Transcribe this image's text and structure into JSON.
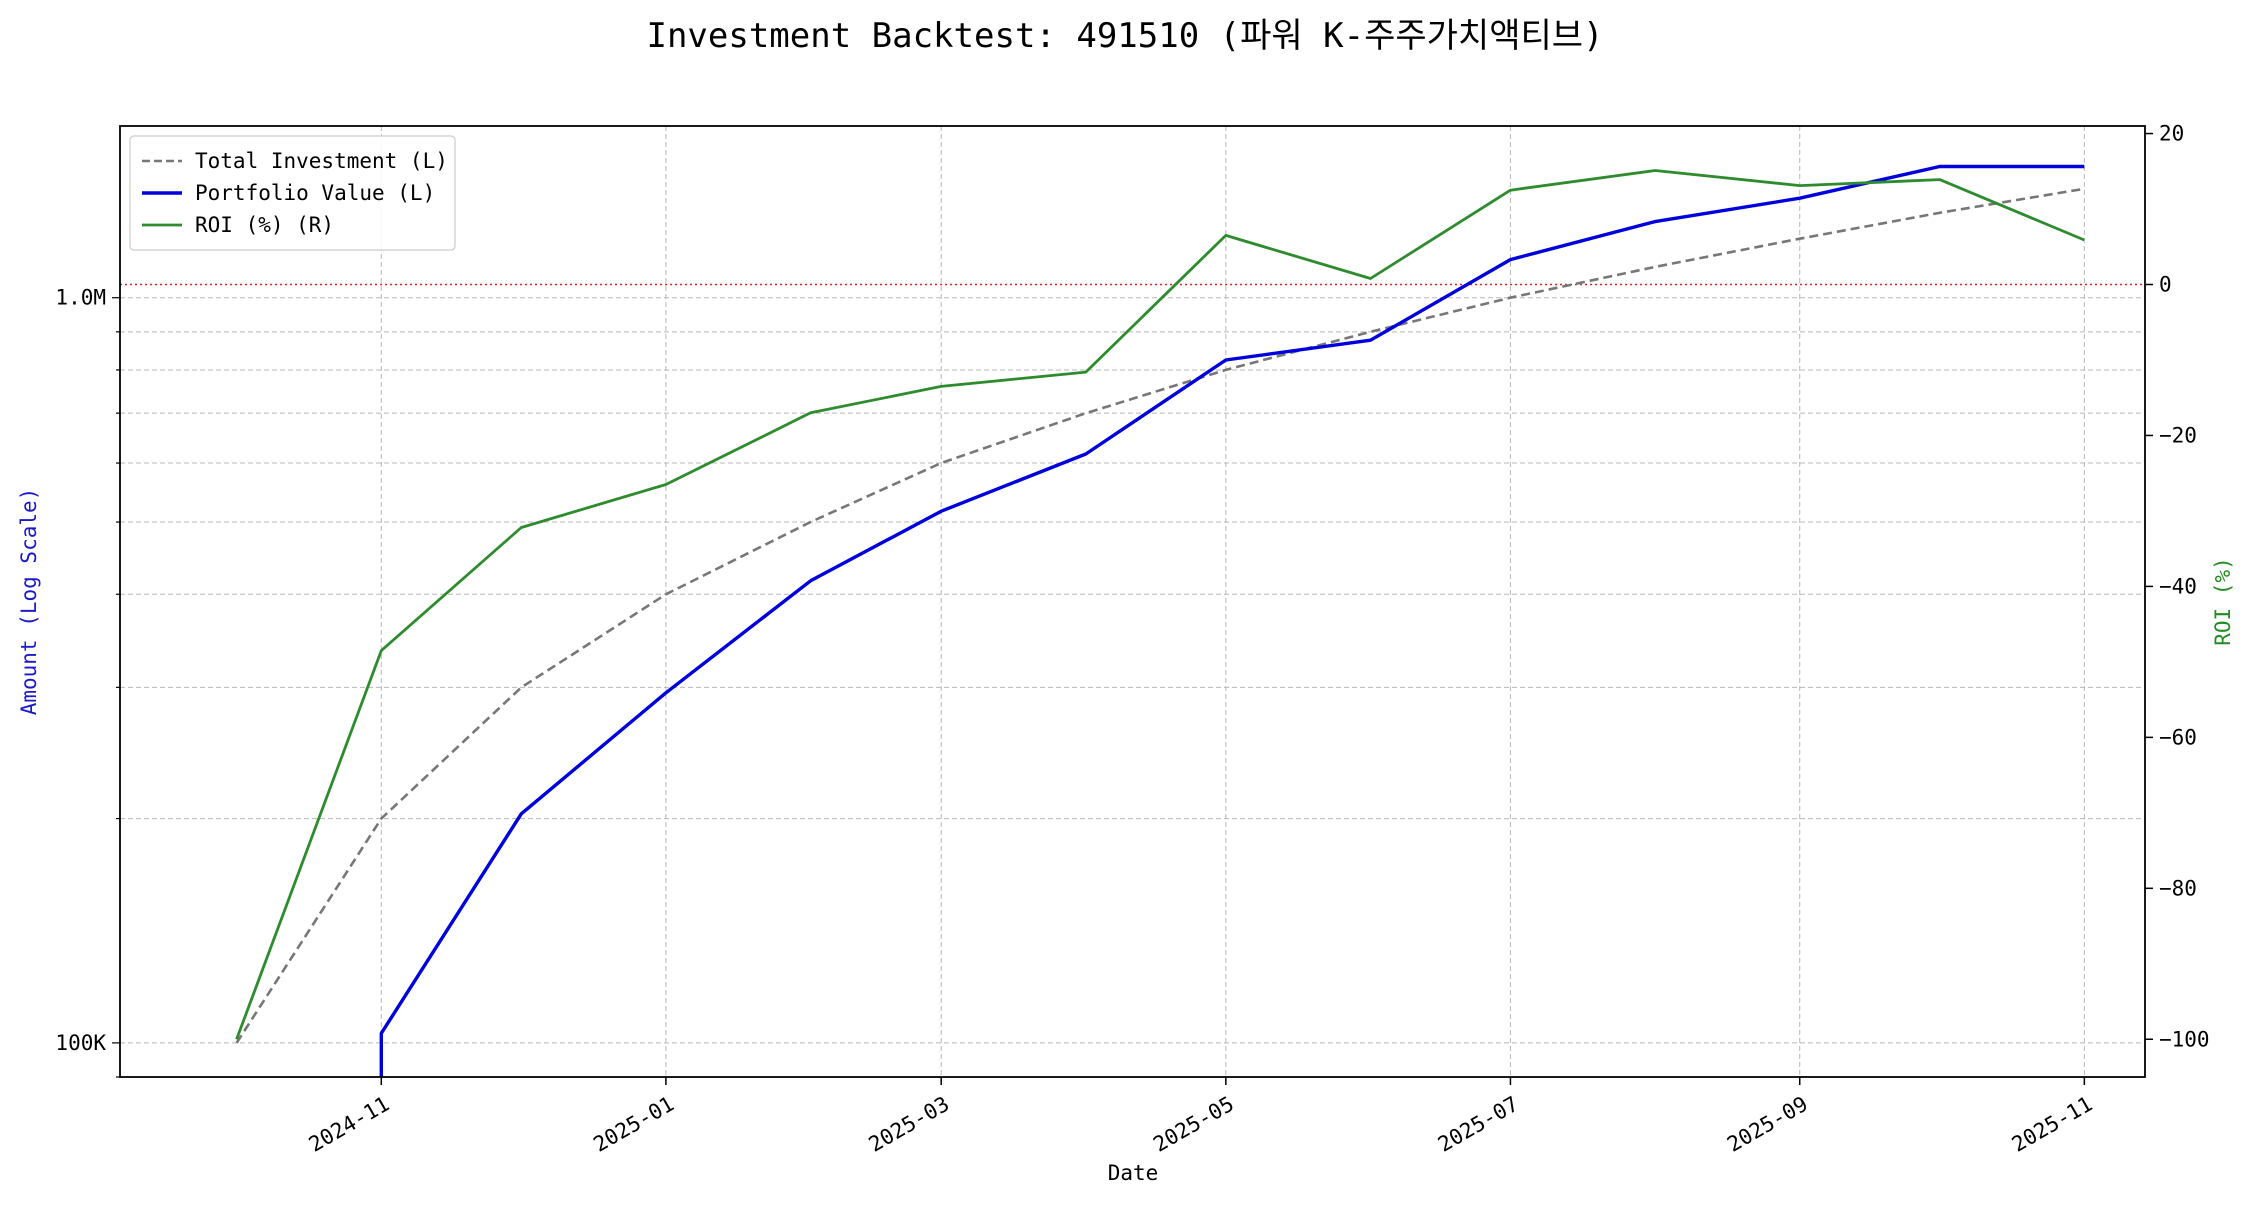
{
  "chart_data": {
    "type": "line",
    "title": "Investment Backtest: 491510 (파워 K-주주가치액티브)",
    "xlabel": "Date",
    "ylabel_left": "Amount (Log Scale)",
    "ylabel_right": "ROI (%)",
    "y_left_scale": "log",
    "y_left_range": [
      90000,
      1700000
    ],
    "y_left_ticks": [
      100000,
      1000000
    ],
    "y_left_tick_labels": [
      "100K",
      "1.0M"
    ],
    "y_right_range": [
      -105,
      21
    ],
    "y_right_ticks": [
      20,
      0,
      -20,
      -40,
      -60,
      -80,
      -100
    ],
    "y_right_tick_labels": [
      "20",
      "0",
      "−20",
      "−40",
      "−60",
      "−80",
      "−100"
    ],
    "x_range": [
      "2024-09-06",
      "2025-11-14"
    ],
    "x_ticks": [
      "2024-11-01",
      "2025-01-01",
      "2025-03-01",
      "2025-05-01",
      "2025-07-01",
      "2025-09-01",
      "2025-11-01"
    ],
    "x_tick_labels": [
      "2024-11",
      "2025-01",
      "2025-03",
      "2025-05",
      "2025-07",
      "2025-09",
      "2025-11"
    ],
    "grid": true,
    "legend_position": "top-left",
    "zero_line": {
      "axis": "right",
      "value": 0,
      "color": "#dd2222"
    },
    "colors": {
      "left_axis": "#1a1acc",
      "right_axis": "#228b22",
      "total_investment": "#777777",
      "portfolio_value": "#0000dd",
      "roi": "#2e8b2e"
    },
    "x": [
      "2024-10-01",
      "2024-11-01",
      "2024-12-01",
      "2025-01-01",
      "2025-02-01",
      "2025-03-01",
      "2025-04-01",
      "2025-05-01",
      "2025-06-01",
      "2025-07-01",
      "2025-08-01",
      "2025-09-01",
      "2025-10-01",
      "2025-11-01"
    ],
    "series": [
      {
        "name": "Total Investment (L)",
        "axis": "left",
        "style": "dashed",
        "values": [
          100000,
          200000,
          300000,
          400000,
          500000,
          600000,
          700000,
          800000,
          900000,
          1000000,
          1100000,
          1200000,
          1300000,
          1400000
        ]
      },
      {
        "name": "Portfolio Value (L)",
        "axis": "left",
        "style": "solid",
        "values": [
          null,
          103000,
          203000,
          295000,
          417000,
          517000,
          617000,
          825000,
          877000,
          1125000,
          1265000,
          1360000,
          1500000,
          1500000
        ]
      },
      {
        "name": "ROI (%) (R)",
        "axis": "right",
        "style": "solid",
        "values": [
          -100,
          -48.5,
          -32.2,
          -26.5,
          -17,
          -13.5,
          -11.6,
          6.5,
          0.8,
          12.5,
          15.1,
          13.1,
          13.9,
          5.9
        ]
      }
    ]
  }
}
